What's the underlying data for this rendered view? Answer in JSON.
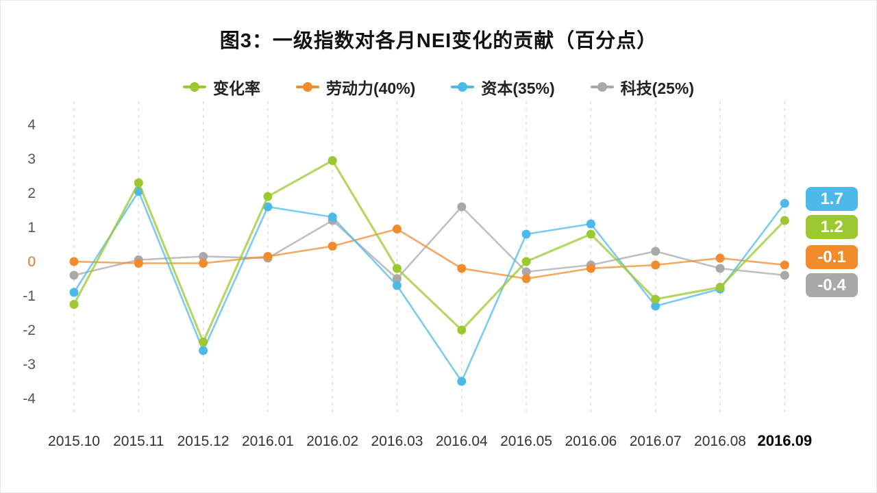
{
  "title": "图3：一级指数对各月NEI变化的贡献（百分点）",
  "chart_data": {
    "type": "line",
    "title": "图3：一级指数对各月NEI变化的贡献（百分点）",
    "categories": [
      "2015.10",
      "2015.11",
      "2015.12",
      "2016.01",
      "2016.02",
      "2016.03",
      "2016.04",
      "2016.05",
      "2016.06",
      "2016.07",
      "2016.08",
      "2016.09"
    ],
    "series": [
      {
        "name": "变化率",
        "color": "#9cc832",
        "values": [
          -1.25,
          2.3,
          -2.35,
          1.9,
          2.95,
          -0.2,
          -2.0,
          0.0,
          0.8,
          -1.1,
          -0.75,
          1.2
        ]
      },
      {
        "name": "劳动力(40%)",
        "color": "#f08c2d",
        "values": [
          0.0,
          -0.05,
          -0.05,
          0.15,
          0.45,
          0.95,
          -0.2,
          -0.5,
          -0.2,
          -0.1,
          0.1,
          -0.1
        ]
      },
      {
        "name": "资本(35%)",
        "color": "#4db9e9",
        "values": [
          -0.9,
          2.05,
          -2.6,
          1.6,
          1.3,
          -0.7,
          -3.5,
          0.8,
          1.1,
          -1.3,
          -0.8,
          1.7
        ]
      },
      {
        "name": "科技(25%)",
        "color": "#a9a9a9",
        "values": [
          -0.4,
          0.05,
          0.15,
          0.1,
          1.2,
          -0.5,
          1.6,
          -0.3,
          -0.1,
          0.3,
          -0.2,
          -0.4
        ]
      }
    ],
    "ylim": [
      -4,
      4
    ],
    "yticks": [
      4,
      3,
      2,
      1,
      0,
      -1,
      -2,
      -3,
      -4
    ],
    "zero_tick_color": "#e87635",
    "grid": "vertical-dashed",
    "legend_position": "top",
    "end_labels": [
      {
        "text": "1.7",
        "color": "#4db9e9"
      },
      {
        "text": "1.2",
        "color": "#9cc832"
      },
      {
        "text": "-0.1",
        "color": "#f08c2d"
      },
      {
        "text": "-0.4",
        "color": "#a9a9a9"
      }
    ]
  }
}
